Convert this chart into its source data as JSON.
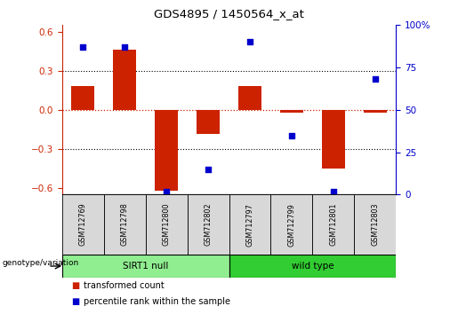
{
  "title": "GDS4895 / 1450564_x_at",
  "samples": [
    "GSM712769",
    "GSM712798",
    "GSM712800",
    "GSM712802",
    "GSM712797",
    "GSM712799",
    "GSM712801",
    "GSM712803"
  ],
  "transformed_count": [
    0.18,
    0.46,
    -0.62,
    -0.185,
    0.18,
    -0.02,
    -0.45,
    -0.02
  ],
  "percentile_rank": [
    87,
    87,
    2,
    15,
    90,
    35,
    2,
    68
  ],
  "groups": [
    {
      "label": "SIRT1 null",
      "start": 0,
      "end": 4,
      "color": "#90EE90"
    },
    {
      "label": "wild type",
      "start": 4,
      "end": 8,
      "color": "#32CD32"
    }
  ],
  "ylim_left": [
    -0.65,
    0.65
  ],
  "ylim_right": [
    0,
    100
  ],
  "yticks_left": [
    -0.6,
    -0.3,
    0.0,
    0.3,
    0.6
  ],
  "yticks_right": [
    0,
    25,
    50,
    75,
    100
  ],
  "bar_color": "#CC2200",
  "dot_color": "#0000CC",
  "background_color": "#ffffff",
  "zero_line_color": "#cc2200",
  "legend_items": [
    "transformed count",
    "percentile rank within the sample"
  ],
  "group_label": "genotype/variation"
}
